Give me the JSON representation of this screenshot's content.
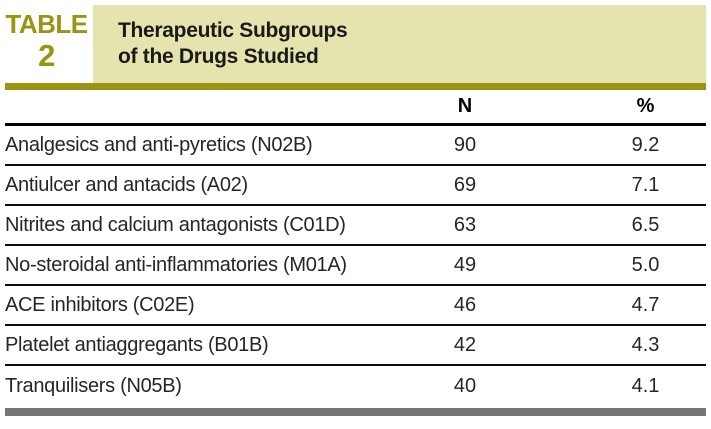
{
  "header": {
    "label_word": "TABLE",
    "label_number": "2",
    "title_line1": "Therapeutic Subgroups",
    "title_line2": "of the Drugs Studied"
  },
  "table": {
    "columns": {
      "n": "N",
      "pct": "%"
    },
    "rows": [
      {
        "label": "Analgesics and anti-pyretics (N02B)",
        "n": "90",
        "pct": "9.2"
      },
      {
        "label": "Antiulcer and antacids (A02)",
        "n": "69",
        "pct": "7.1"
      },
      {
        "label": "Nitrites and calcium antagonists (C01D)",
        "n": "63",
        "pct": "6.5"
      },
      {
        "label": "No-steroidal anti-inflammatories (M01A)",
        "n": "49",
        "pct": "5.0"
      },
      {
        "label": "ACE inhibitors (C02E)",
        "n": "46",
        "pct": "4.7"
      },
      {
        "label": "Platelet antiaggregants (B01B)",
        "n": "42",
        "pct": "4.3"
      },
      {
        "label": "Tranquilisers (N05B)",
        "n": "40",
        "pct": "4.1"
      }
    ]
  },
  "colors": {
    "accent_olive": "#9a9410",
    "title_box_beige": "#e6e4ae",
    "bottom_bar_gray": "#757575",
    "rule_black": "#0d0d0d",
    "text_dark": "#262626"
  }
}
